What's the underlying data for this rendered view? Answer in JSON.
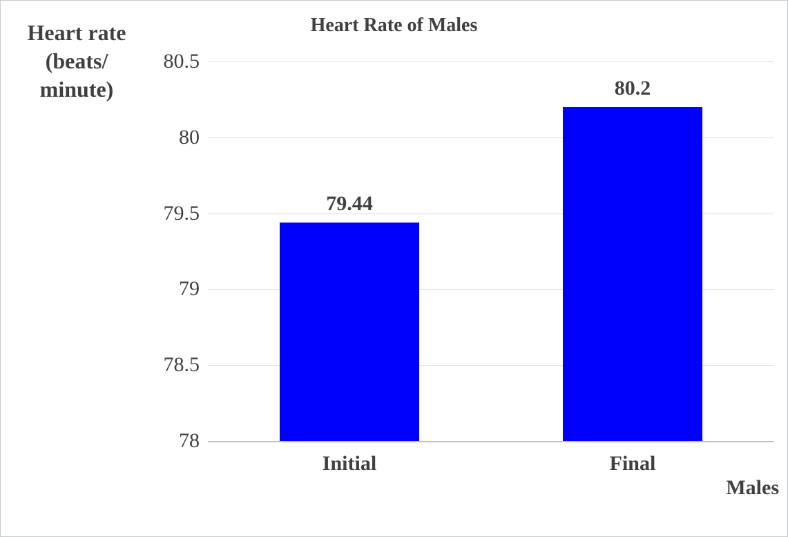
{
  "chart_data": {
    "type": "bar",
    "title": "Heart Rate of Males",
    "ylabel": "Heart rate (beats/ minute)",
    "ylabel_lines": [
      "Heart rate",
      "(beats/",
      "minute)"
    ],
    "xlabel": "Males",
    "categories": [
      "Initial",
      "Final"
    ],
    "values": [
      79.44,
      80.2
    ],
    "data_labels": [
      "79.44",
      "80.2"
    ],
    "ylim": [
      78,
      80.5
    ],
    "yticks": [
      78,
      78.5,
      79,
      79.5,
      80,
      80.5
    ],
    "ytick_labels": [
      "78",
      "78.5",
      "79",
      "79.5",
      "80",
      "80.5"
    ],
    "grid": true,
    "legend": false,
    "bar_color": "#0000FD",
    "text_color": "#404040",
    "gridline_color": "#d9d9d9",
    "axis_line_color": "#bfbfbf"
  }
}
